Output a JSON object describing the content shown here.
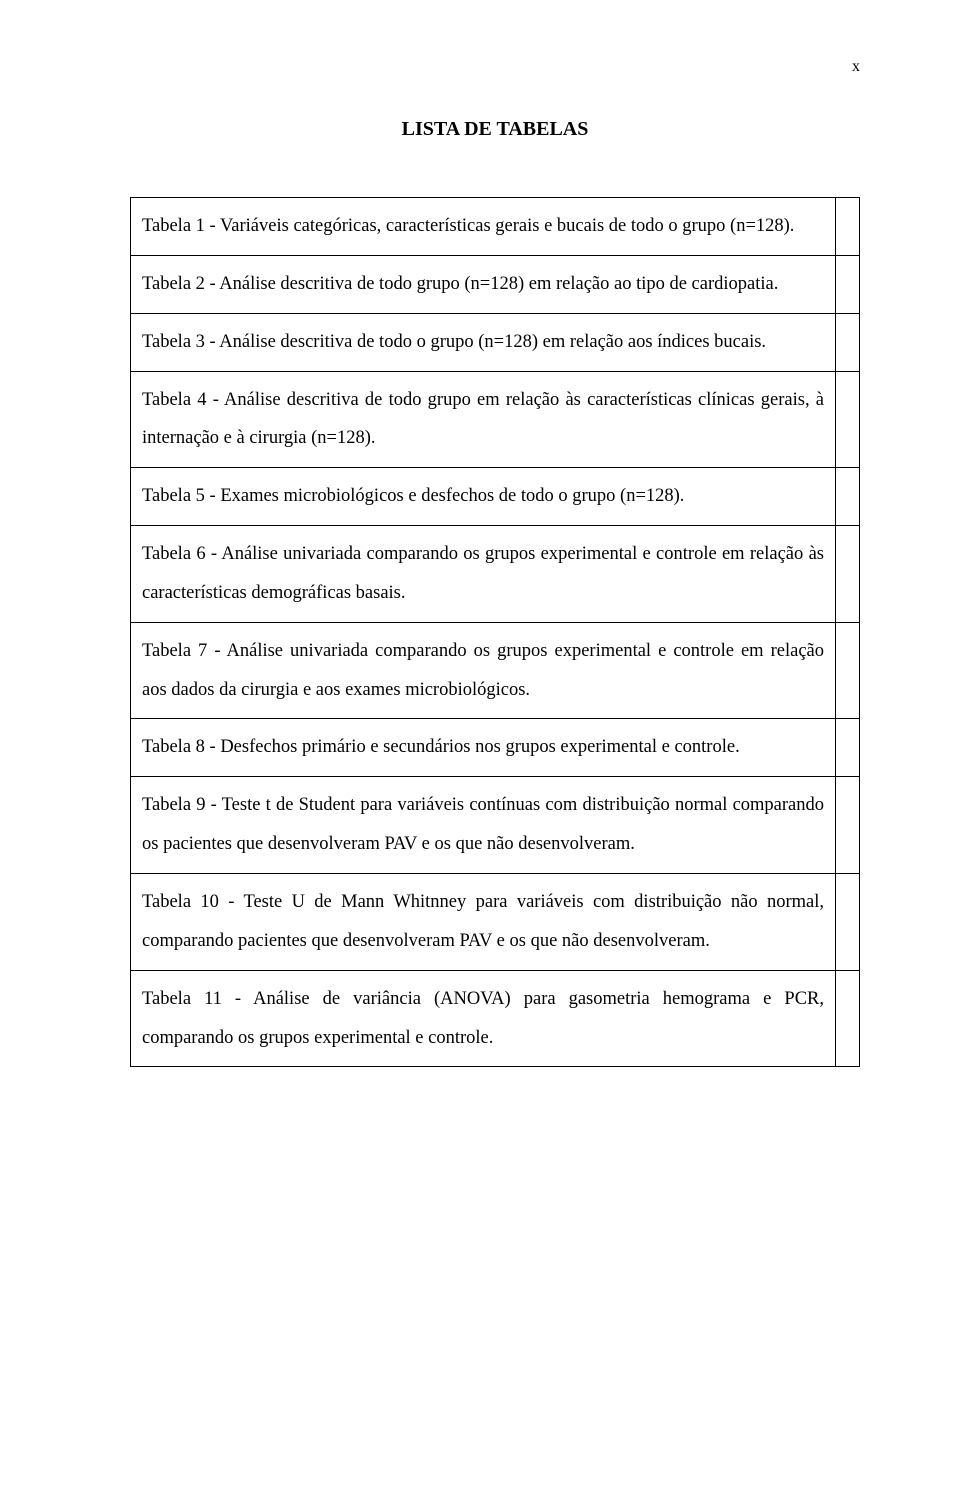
{
  "page_number": "x",
  "title": "LISTA DE TABELAS",
  "rows": [
    {
      "text": "Tabela 1 - Variáveis categóricas, características gerais e bucais de todo o grupo (n=128)."
    },
    {
      "text": "Tabela 2 - Análise descritiva de todo grupo (n=128) em relação ao tipo de cardiopatia."
    },
    {
      "text": "Tabela 3 - Análise descritiva de todo o grupo (n=128) em relação aos índices bucais."
    },
    {
      "text": "Tabela 4 - Análise descritiva de todo grupo em relação às características clínicas gerais, à internação e à cirurgia (n=128)."
    },
    {
      "text": "Tabela 5 - Exames microbiológicos e desfechos de todo o grupo (n=128)."
    },
    {
      "text": "Tabela 6 - Análise univariada comparando os grupos experimental e controle em relação às características demográficas basais."
    },
    {
      "text": "Tabela 7 - Análise univariada comparando os grupos experimental e controle em relação aos dados da cirurgia e aos exames microbiológicos."
    },
    {
      "text": "Tabela 8 - Desfechos primário e secundários nos grupos experimental e controle."
    },
    {
      "text": "Tabela 9 - Teste t de Student para variáveis contínuas com distribuição normal comparando os pacientes que desenvolveram PAV e os que não desenvolveram."
    },
    {
      "text": "Tabela 10 - Teste U de Mann Whitnney para variáveis com distribuição não normal, comparando pacientes que desenvolveram PAV e os que não desenvolveram."
    },
    {
      "text": "Tabela 11 - Análise de variância (ANOVA) para gasometria hemograma e PCR, comparando os grupos experimental e controle."
    }
  ]
}
